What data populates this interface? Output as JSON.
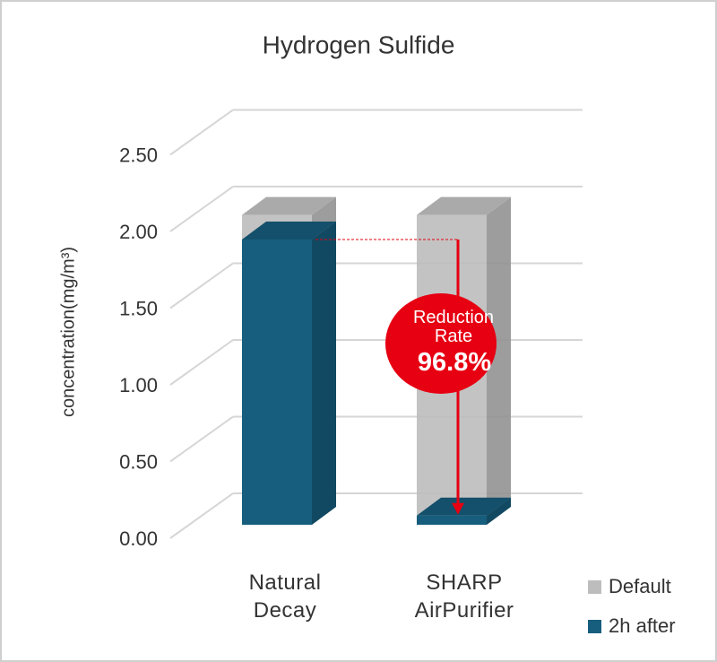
{
  "chart_data": {
    "type": "bar3d",
    "title": "Hydrogen Sulfide",
    "y_label": "concentration(mg/m³)",
    "categories": [
      "Natural Decay",
      "SHARP AirPurifier"
    ],
    "series": [
      {
        "name": "Default",
        "color": "#bdbdbd",
        "values": [
          2.02,
          2.02
        ]
      },
      {
        "name": "2h after",
        "color": "#175e7e",
        "values": [
          1.86,
          0.06
        ]
      }
    ],
    "ylim": [
      0,
      2.5
    ],
    "yticks": [
      {
        "value": 0,
        "label": "0.00"
      },
      {
        "value": 0.5,
        "label": "0.50"
      },
      {
        "value": 1,
        "label": "1.00"
      },
      {
        "value": 1.5,
        "label": "1.50"
      },
      {
        "value": 2,
        "label": "2.00"
      },
      {
        "value": 2.5,
        "label": "2.50"
      }
    ],
    "grid": true,
    "legend": "bottom-right",
    "annotation": {
      "label": "Reduction Rate",
      "value_label": "96.8%"
    }
  }
}
